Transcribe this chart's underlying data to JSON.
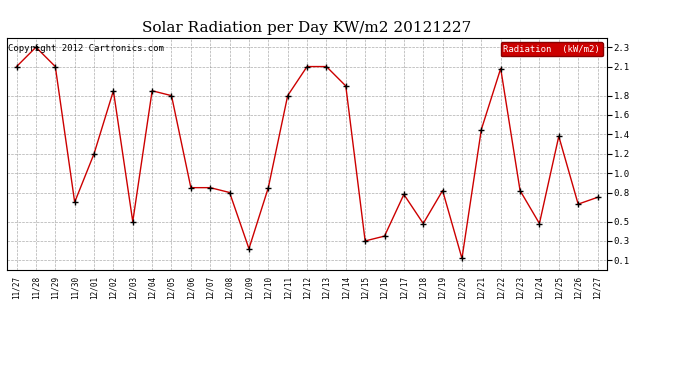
{
  "title": "Solar Radiation per Day KW/m2 20121227",
  "copyright": "Copyright 2012 Cartronics.com",
  "legend_label": "Radiation  (kW/m2)",
  "labels": [
    "11/27",
    "11/28",
    "11/29",
    "11/30",
    "12/01",
    "12/02",
    "12/03",
    "12/04",
    "12/05",
    "12/06",
    "12/07",
    "12/08",
    "12/09",
    "12/10",
    "12/11",
    "12/12",
    "12/13",
    "12/14",
    "12/15",
    "12/16",
    "12/17",
    "12/18",
    "12/19",
    "12/20",
    "12/21",
    "12/22",
    "12/23",
    "12/24",
    "12/25",
    "12/26",
    "12/27"
  ],
  "values": [
    2.1,
    2.3,
    2.1,
    0.7,
    1.2,
    1.85,
    0.5,
    1.85,
    1.8,
    0.85,
    0.85,
    0.8,
    0.22,
    0.85,
    1.8,
    2.1,
    2.1,
    1.9,
    0.3,
    0.35,
    0.78,
    0.48,
    0.82,
    0.12,
    1.45,
    2.08,
    0.82,
    0.48,
    1.38,
    0.68,
    0.75
  ],
  "line_color": "#cc0000",
  "marker_color": "#000000",
  "bg_color": "#ffffff",
  "plot_bg_color": "#ffffff",
  "grid_color": "#999999",
  "title_fontsize": 11,
  "copyright_fontsize": 6.5,
  "legend_bg": "#cc0000",
  "legend_text_color": "#ffffff",
  "ylim": [
    0.0,
    2.4
  ],
  "yticks": [
    0.1,
    0.3,
    0.5,
    0.8,
    1.0,
    1.2,
    1.4,
    1.6,
    1.8,
    2.1,
    2.3
  ]
}
